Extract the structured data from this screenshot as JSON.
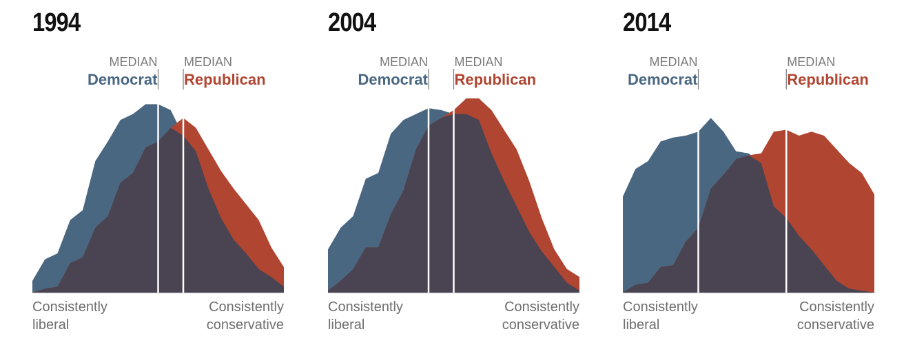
{
  "colors": {
    "democrat": "#4a6781",
    "republican": "#b04531",
    "overlap": "#4a4351",
    "median_line": "#ffffff",
    "baseline": "#cccccc"
  },
  "chart_data": [
    {
      "type": "area",
      "title": "1994",
      "x": [
        0,
        5,
        10,
        15,
        20,
        25,
        30,
        35,
        40,
        45,
        50,
        55,
        60,
        65,
        70,
        75,
        80,
        85,
        90,
        95,
        100
      ],
      "xlim": [
        0,
        100
      ],
      "ylim": [
        0,
        100
      ],
      "series": [
        {
          "name": "Democrat",
          "values": [
            6,
            17,
            20,
            37,
            42,
            67,
            77,
            88,
            91,
            96,
            96,
            93,
            80,
            72,
            53,
            38,
            27,
            20,
            12,
            8,
            3
          ]
        },
        {
          "name": "Republican",
          "values": [
            0,
            2,
            3,
            15,
            18,
            33,
            39,
            56,
            61,
            74,
            77,
            84,
            89,
            84,
            73,
            62,
            53,
            45,
            37,
            23,
            13
          ]
        }
      ],
      "medians": [
        {
          "label_top": "MEDIAN",
          "label": "Democrat",
          "x": 50
        },
        {
          "label_top": "MEDIAN",
          "label": "Republican",
          "x": 60
        }
      ],
      "x_labels": {
        "left": [
          "Consistently",
          "liberal"
        ],
        "right": [
          "Consistently",
          "conservative"
        ]
      }
    },
    {
      "type": "area",
      "title": "2004",
      "x": [
        0,
        5,
        10,
        15,
        20,
        25,
        30,
        35,
        40,
        45,
        50,
        55,
        60,
        65,
        70,
        75,
        80,
        85,
        90,
        95,
        100
      ],
      "xlim": [
        0,
        100
      ],
      "ylim": [
        0,
        100
      ],
      "series": [
        {
          "name": "Democrat",
          "values": [
            22,
            33,
            39,
            58,
            61,
            81,
            88,
            91,
            94,
            93,
            91,
            91,
            88,
            71,
            57,
            44,
            31,
            21,
            13,
            5,
            1
          ]
        },
        {
          "name": "Republican",
          "values": [
            1,
            6,
            12,
            23,
            23,
            40,
            52,
            73,
            85,
            89,
            93,
            99,
            99,
            93,
            83,
            73,
            57,
            38,
            22,
            12,
            8
          ]
        }
      ],
      "medians": [
        {
          "label_top": "MEDIAN",
          "label": "Democrat",
          "x": 40
        },
        {
          "label_top": "MEDIAN",
          "label": "Republican",
          "x": 50
        }
      ],
      "x_labels": {
        "left": [
          "Consistently",
          "liberal"
        ],
        "right": [
          "Consistently",
          "conservative"
        ]
      }
    },
    {
      "type": "area",
      "title": "2014",
      "x": [
        0,
        5,
        10,
        15,
        20,
        25,
        30,
        35,
        40,
        45,
        50,
        55,
        60,
        65,
        70,
        75,
        80,
        85,
        90,
        95,
        100
      ],
      "xlim": [
        0,
        100
      ],
      "ylim": [
        0,
        100
      ],
      "series": [
        {
          "name": "Democrat",
          "values": [
            49,
            63,
            67,
            77,
            79,
            80,
            82,
            89,
            82,
            72,
            71,
            66,
            44,
            38,
            29,
            22,
            14,
            6,
            2,
            1,
            0
          ]
        },
        {
          "name": "Republican",
          "values": [
            0,
            4,
            5,
            13,
            14,
            26,
            33,
            53,
            60,
            68,
            70,
            71,
            82,
            83,
            80,
            82,
            80,
            73,
            66,
            61,
            50
          ]
        }
      ],
      "medians": [
        {
          "label_top": "MEDIAN",
          "label": "Democrat",
          "x": 30
        },
        {
          "label_top": "MEDIAN",
          "label": "Republican",
          "x": 65
        }
      ],
      "x_labels": {
        "left": [
          "Consistently",
          "liberal"
        ],
        "right": [
          "Consistently",
          "conservative"
        ]
      }
    }
  ]
}
